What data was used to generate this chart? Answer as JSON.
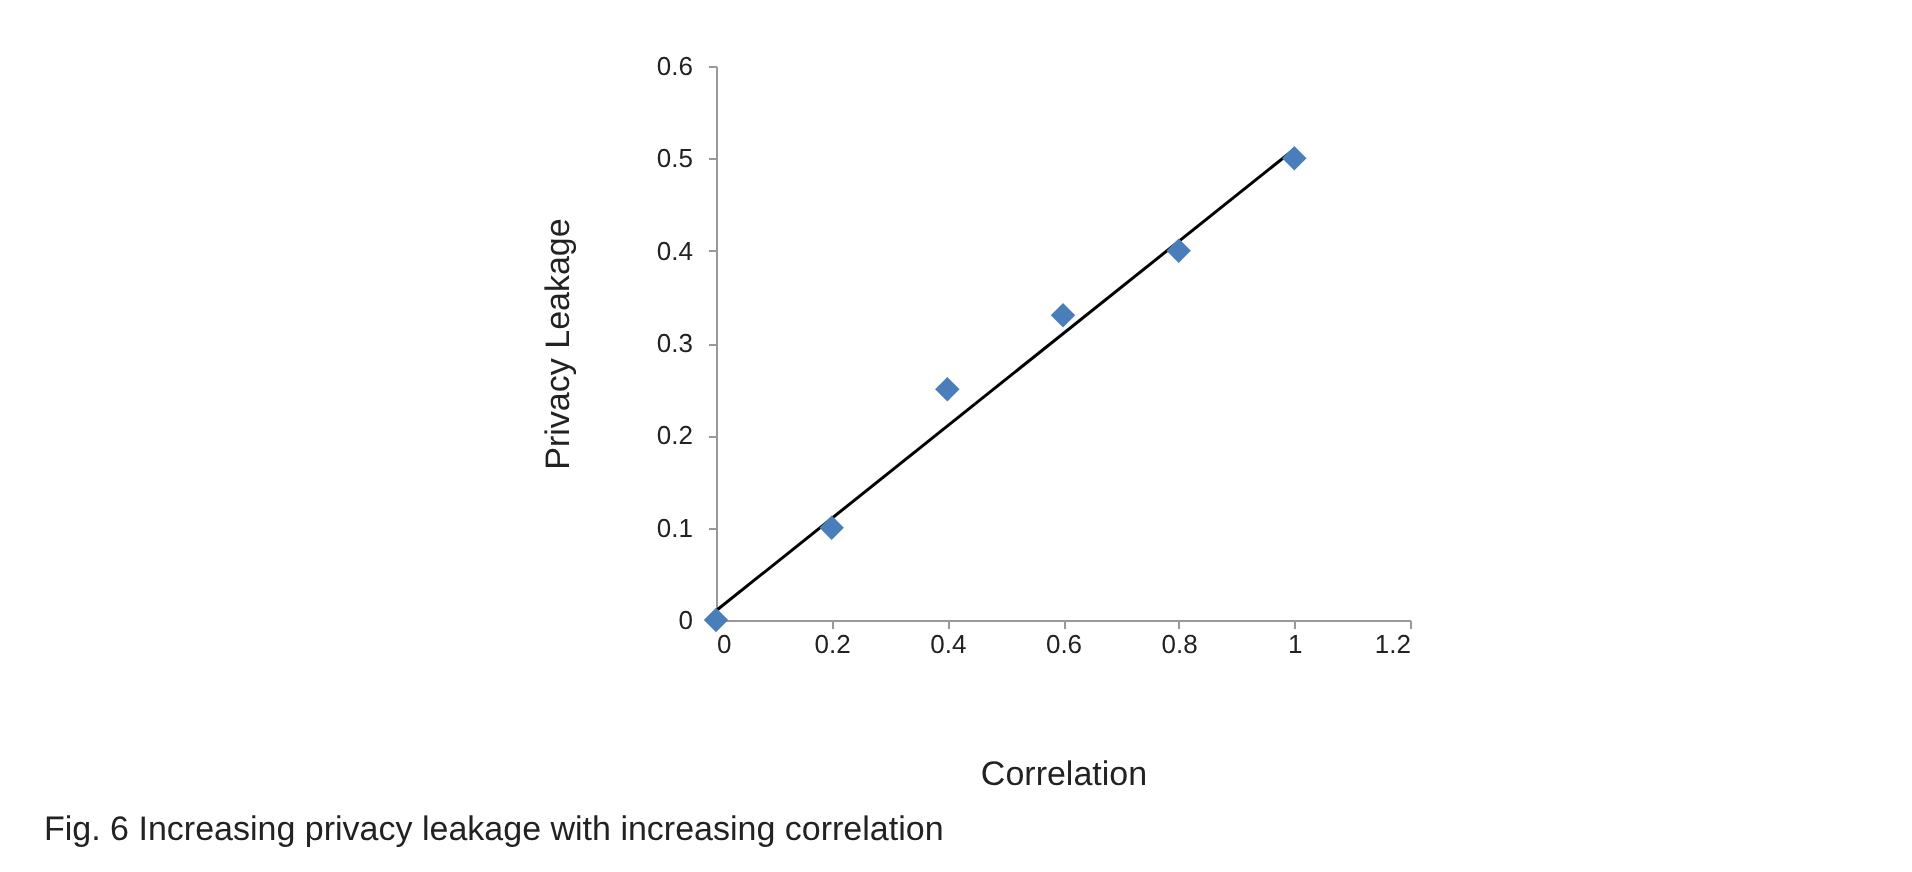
{
  "chart_data": {
    "type": "scatter",
    "xlabel": "Correlation",
    "ylabel": "Privacy Leakage",
    "annotations": [
      "Fig. 6  Increasing privacy leakage with increasing correlation"
    ],
    "x": [
      0,
      0.2,
      0.4,
      0.6,
      0.8,
      1
    ],
    "series": [
      {
        "color": "#4a7ebb",
        "marker": "diamond",
        "values": [
          0,
          0.1,
          0.25,
          0.33,
          0.4,
          0.5
        ]
      },
      {
        "type": "line",
        "color": "#000000",
        "x": [
          0,
          1
        ],
        "values": [
          0.01,
          0.51
        ]
      }
    ],
    "xlim": [
      0,
      1.2
    ],
    "xticks": [
      0,
      0.2,
      0.4,
      0.6,
      0.8,
      1,
      1.2
    ],
    "ylim": [
      0,
      0.6
    ],
    "yticks": [
      0,
      0.1,
      0.2,
      0.3,
      0.4,
      0.5,
      0.6
    ]
  }
}
